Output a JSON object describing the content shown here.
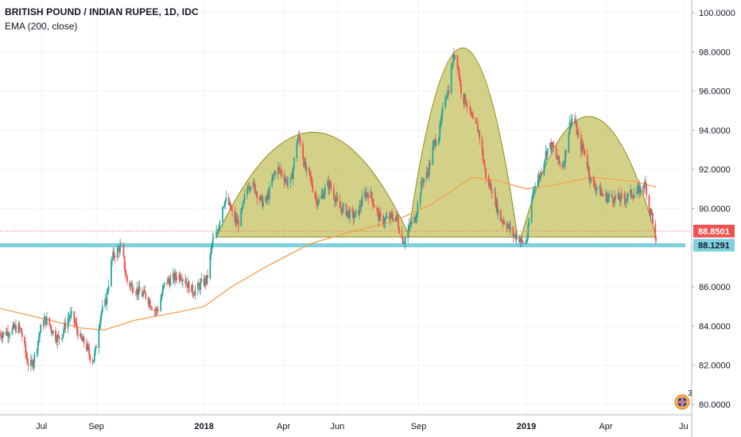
{
  "chart_data": {
    "type": "candlestick",
    "title": "BRITISH POUND / INDIAN RUPEE, 1D, IDC",
    "indicator": "EMA (200, close)",
    "y_range": [
      79.6,
      100.3
    ],
    "y_ticks": [
      "100.0000",
      "98.0000",
      "96.0000",
      "94.0000",
      "92.0000",
      "90.0000",
      "88.0000",
      "86.0000",
      "84.0000",
      "82.0000",
      "80.0000"
    ],
    "y_tick_values": [
      100,
      98,
      96,
      94,
      92,
      90,
      88,
      86,
      84,
      82,
      80
    ],
    "x_labels": [
      "Jul",
      "Sep",
      "2018",
      "Apr",
      "Jun",
      "Sep",
      "2019",
      "Apr",
      "Ju"
    ],
    "x_labels_bold": [
      false,
      false,
      true,
      false,
      false,
      false,
      true,
      false,
      false
    ],
    "x_range": [
      "2017-05-15",
      "2019-06-30"
    ],
    "x_label_dates": [
      "2017-07-01",
      "2017-09-01",
      "2018-01-01",
      "2018-04-01",
      "2018-06-01",
      "2018-09-01",
      "2019-01-01",
      "2019-04-01",
      "2019-06-28"
    ],
    "price_anchors": [
      [
        "2017-05-15",
        83.6
      ],
      [
        "2017-06-05",
        83.9
      ],
      [
        "2017-06-18",
        82.0
      ],
      [
        "2017-07-05",
        84.3
      ],
      [
        "2017-07-20",
        83.4
      ],
      [
        "2017-08-03",
        84.5
      ],
      [
        "2017-08-17",
        83.2
      ],
      [
        "2017-08-28",
        82.3
      ],
      [
        "2017-09-08",
        84.8
      ],
      [
        "2017-09-22",
        87.7
      ],
      [
        "2017-09-28",
        88.0
      ],
      [
        "2017-10-08",
        86.1
      ],
      [
        "2017-10-25",
        85.6
      ],
      [
        "2017-11-08",
        84.8
      ],
      [
        "2017-11-20",
        86.3
      ],
      [
        "2017-12-05",
        86.6
      ],
      [
        "2017-12-20",
        85.8
      ],
      [
        "2018-01-03",
        86.3
      ],
      [
        "2018-01-12",
        88.4
      ],
      [
        "2018-01-25",
        90.4
      ],
      [
        "2018-02-08",
        89.3
      ],
      [
        "2018-02-22",
        91.3
      ],
      [
        "2018-03-10",
        90.3
      ],
      [
        "2018-03-25",
        92.0
      ],
      [
        "2018-04-08",
        91.3
      ],
      [
        "2018-04-18",
        93.6
      ],
      [
        "2018-04-28",
        91.8
      ],
      [
        "2018-05-10",
        90.4
      ],
      [
        "2018-05-22",
        91.2
      ],
      [
        "2018-06-05",
        90.0
      ],
      [
        "2018-06-20",
        89.6
      ],
      [
        "2018-07-05",
        90.8
      ],
      [
        "2018-07-22",
        89.4
      ],
      [
        "2018-08-05",
        89.6
      ],
      [
        "2018-08-15",
        88.4
      ],
      [
        "2018-08-25",
        89.3
      ],
      [
        "2018-09-08",
        91.6
      ],
      [
        "2018-09-22",
        93.6
      ],
      [
        "2018-10-03",
        95.9
      ],
      [
        "2018-10-12",
        97.9
      ],
      [
        "2018-10-22",
        95.6
      ],
      [
        "2018-11-05",
        94.2
      ],
      [
        "2018-11-20",
        91.2
      ],
      [
        "2018-12-05",
        89.4
      ],
      [
        "2018-12-20",
        88.6
      ],
      [
        "2018-12-30",
        88.2
      ],
      [
        "2019-01-12",
        91.4
      ],
      [
        "2019-01-28",
        93.2
      ],
      [
        "2019-02-10",
        92.2
      ],
      [
        "2019-02-22",
        94.6
      ],
      [
        "2019-03-05",
        93.1
      ],
      [
        "2019-03-18",
        91.2
      ],
      [
        "2019-04-01",
        90.6
      ],
      [
        "2019-04-18",
        90.5
      ],
      [
        "2019-05-05",
        90.8
      ],
      [
        "2019-05-15",
        91.2
      ],
      [
        "2019-05-22",
        89.8
      ],
      [
        "2019-05-28",
        88.2
      ]
    ],
    "ema_anchors": [
      [
        "2017-05-15",
        84.9
      ],
      [
        "2017-07-01",
        84.4
      ],
      [
        "2017-08-15",
        83.9
      ],
      [
        "2017-09-10",
        83.8
      ],
      [
        "2017-10-15",
        84.3
      ],
      [
        "2017-12-01",
        84.7
      ],
      [
        "2018-01-01",
        85.0
      ],
      [
        "2018-02-01",
        86.0
      ],
      [
        "2018-03-15",
        87.1
      ],
      [
        "2018-05-01",
        88.2
      ],
      [
        "2018-06-15",
        88.8
      ],
      [
        "2018-08-01",
        89.3
      ],
      [
        "2018-09-15",
        90.2
      ],
      [
        "2018-11-01",
        91.6
      ],
      [
        "2018-12-01",
        91.4
      ],
      [
        "2019-01-01",
        91.0
      ],
      [
        "2019-02-01",
        91.2
      ],
      [
        "2019-03-15",
        91.6
      ],
      [
        "2019-05-01",
        91.4
      ],
      [
        "2019-05-28",
        91.1
      ]
    ],
    "patterns": [
      {
        "start": "2018-01-15",
        "end": "2018-08-22",
        "peak": 93.9
      },
      {
        "start": "2018-08-20",
        "end": "2018-12-22",
        "peak": 98.2
      },
      {
        "start": "2018-12-26",
        "end": "2019-05-28",
        "peak": 94.7
      }
    ],
    "pattern_base": 88.55,
    "support_level": 88.13,
    "support_label": "88.1291",
    "last_price": 88.85,
    "last_price_label": "88.8501",
    "colors": {
      "up": "#26a69a",
      "down": "#ef5350",
      "ema": "#f5a04b",
      "pattern_fill": "#b5b338",
      "pattern_stroke": "#8c8a1e",
      "support": "#7fd1e0",
      "last_price": "#ef5350"
    },
    "badge_count": "3",
    "badge_icon": "union-jack-flag-icon"
  }
}
